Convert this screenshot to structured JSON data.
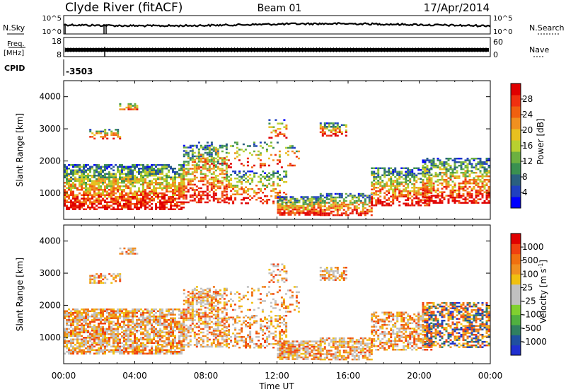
{
  "header": {
    "station": "Clyde River (fitACF)",
    "beam": "Beam 01",
    "date": "17/Apr/2014"
  },
  "summary_panels": {
    "nsky": {
      "left_label": "N.Sky",
      "right_label": "N.Search",
      "y_ticks": [
        "10^5",
        "10^0"
      ]
    },
    "freq": {
      "left_label_line1": "Freq.",
      "left_label_line2": "[MHz]",
      "left_ticks": [
        "18",
        "8"
      ],
      "right_label": "Nave",
      "right_ticks": [
        "60",
        "0"
      ]
    },
    "cpid": {
      "label": "CPID",
      "value": "-3503"
    }
  },
  "chart_data": [
    {
      "type": "heatmap",
      "title": "",
      "ylabel": "Slant Range [km]",
      "ylim": [
        180,
        4500
      ],
      "y_ticks": [
        "1000",
        "2000",
        "3000",
        "4000"
      ],
      "colorbar_label": "Power [dB]",
      "colorbar_ticks": [
        "28",
        "24",
        "20",
        "16",
        "12",
        "8",
        "4"
      ],
      "colorbar_colors": [
        "#0000ff",
        "#2040c0",
        "#2a6080",
        "#3a9050",
        "#6cb040",
        "#b8d030",
        "#e8c020",
        "#f09020",
        "#f06010",
        "#f03010",
        "#e00000"
      ]
    },
    {
      "type": "heatmap",
      "title": "",
      "ylabel": "Slant Range [km]",
      "ylim": [
        180,
        4500
      ],
      "y_ticks": [
        "1000",
        "2000",
        "3000",
        "4000"
      ],
      "colorbar_label": "Velocity [m s",
      "colorbar_label_sup": "-1",
      "colorbar_label_end": "]",
      "colorbar_ticks": [
        "1000",
        "500",
        "100",
        "25",
        "-25",
        "-100",
        "-500",
        "-1000"
      ],
      "colorbar_colors": [
        "#2030d0",
        "#2050a0",
        "#308060",
        "#50b040",
        "#80d030",
        "#c0c0c0",
        "#c0c0c0",
        "#f0c010",
        "#f09020",
        "#f07010",
        "#f04010",
        "#e00000"
      ]
    }
  ],
  "time_axis": {
    "xlabel": "Time UT",
    "ticks": [
      "00:00",
      "04:00",
      "08:00",
      "12:00",
      "16:00",
      "20:00",
      "00:00"
    ]
  }
}
